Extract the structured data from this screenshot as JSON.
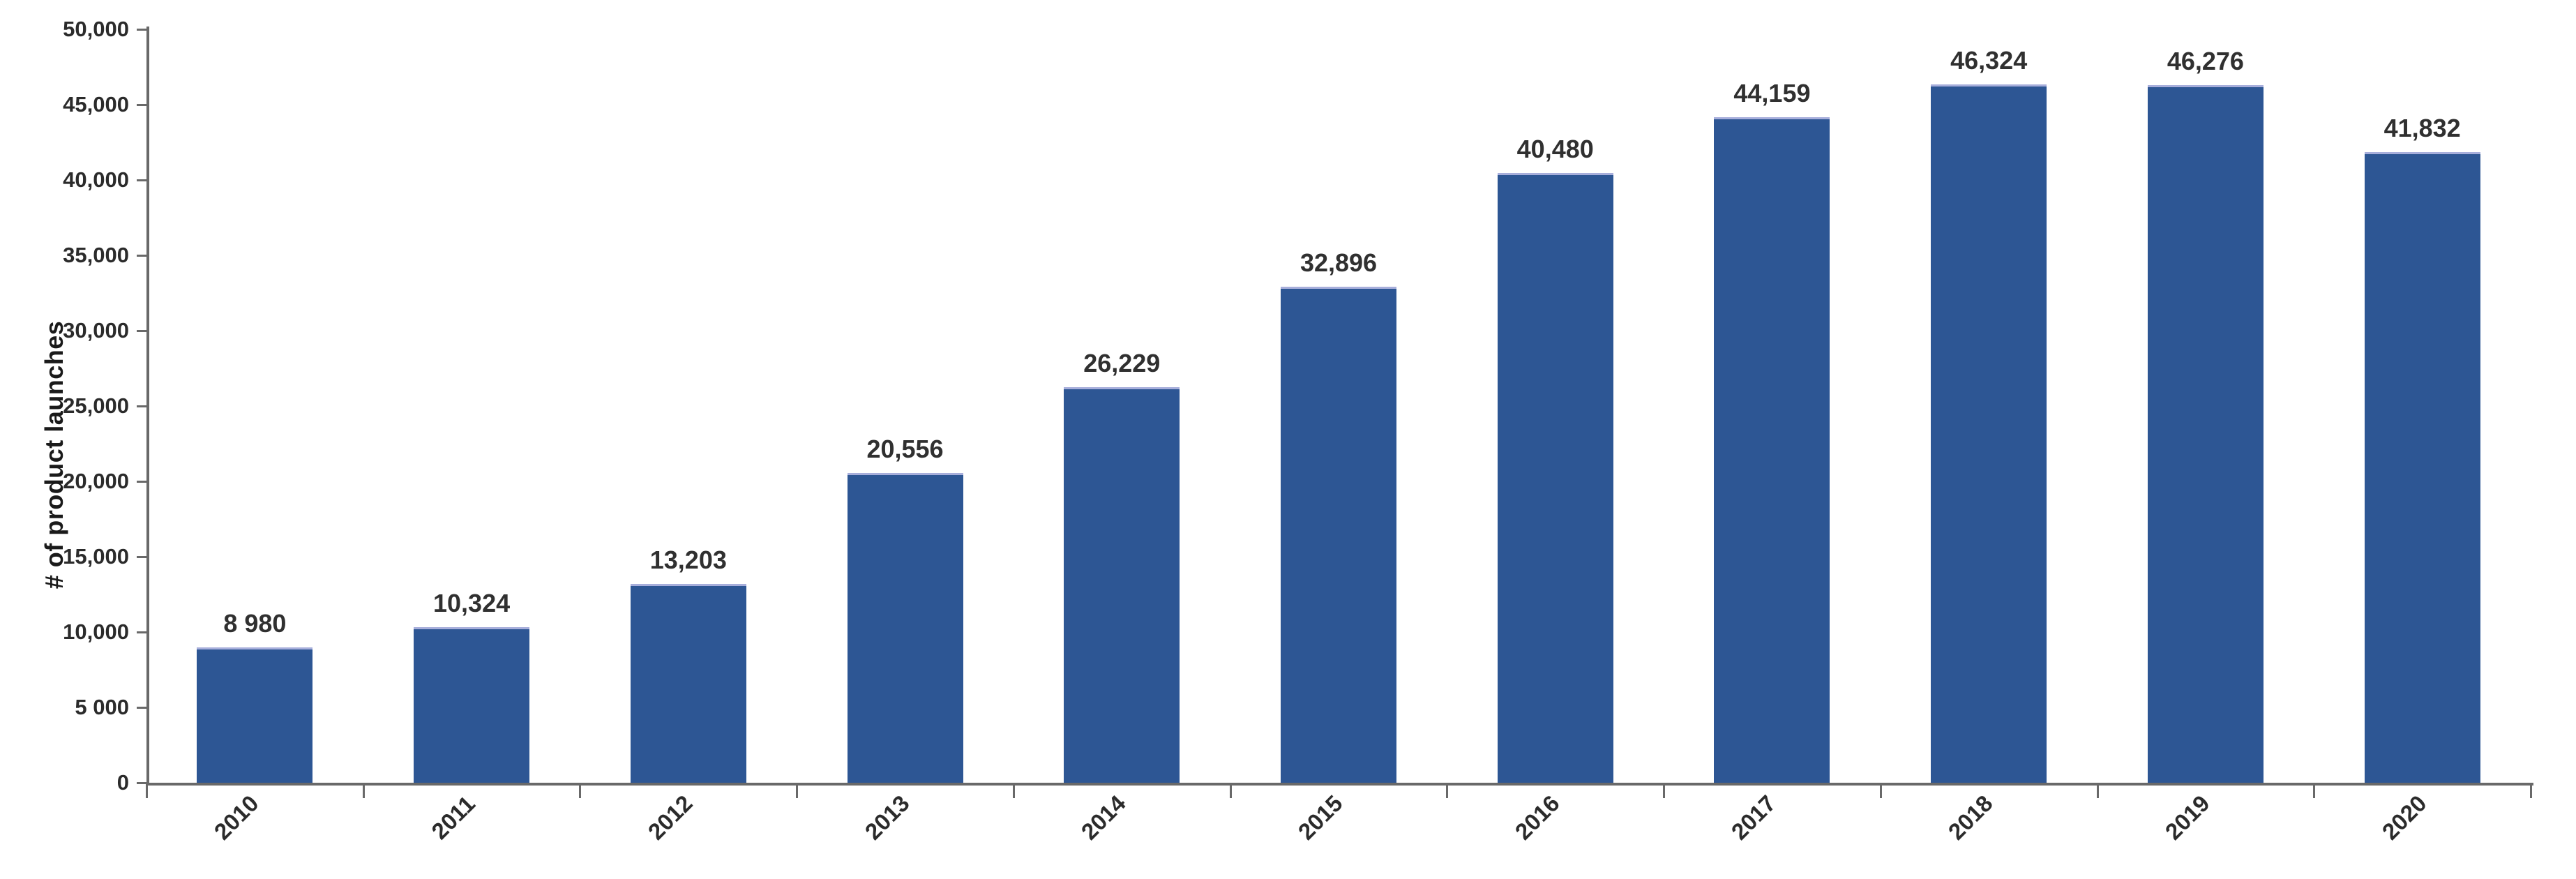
{
  "chart_data": {
    "type": "bar",
    "title": "",
    "xlabel": "",
    "ylabel": "# of product launches",
    "categories": [
      "2010",
      "2011",
      "2012",
      "2013",
      "2014",
      "2015",
      "2016",
      "2017",
      "2018",
      "2019",
      "2020"
    ],
    "values": [
      8980,
      10324,
      13203,
      20556,
      26229,
      32896,
      40480,
      44159,
      46324,
      46276,
      41832
    ],
    "value_labels": [
      "8 980",
      "10,324",
      "13,203",
      "20,556",
      "26,229",
      "32,896",
      "40,480",
      "44,159",
      "46,324",
      "46,276",
      "41,832"
    ],
    "ytick_labels": [
      "0",
      "5 000",
      "10,000",
      "15,000",
      "20,000",
      "25,000",
      "30,000",
      "35,000",
      "40,000",
      "45,000",
      "50,000"
    ],
    "ylim": [
      0,
      50000
    ],
    "grid": "off",
    "legend": "none",
    "bar_color": "#2d5694",
    "bar_top_edge_color": "#a7aedb",
    "axis_color": "#696969",
    "text_color": "#2b2b2b"
  }
}
